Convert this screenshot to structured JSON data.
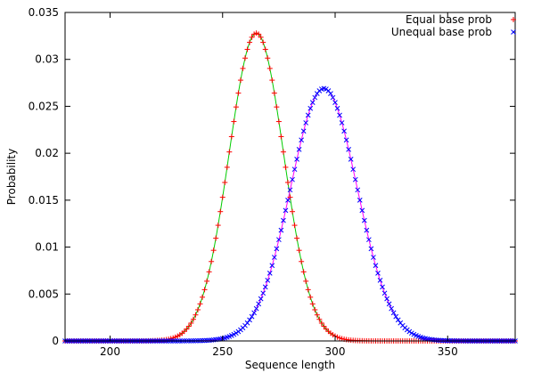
{
  "chart_data": {
    "type": "scatter",
    "title": "",
    "xlabel": "Sequence length",
    "ylabel": "Probability",
    "xlim": [
      180,
      380
    ],
    "ylim": [
      0,
      0.035
    ],
    "xticks": [
      200,
      250,
      300,
      350
    ],
    "yticks": [
      0,
      0.005,
      0.01,
      0.015,
      0.02,
      0.025,
      0.03,
      0.035
    ],
    "ytick_labels": [
      "0",
      "0.005",
      "0.01",
      "0.015",
      "0.02",
      "0.025",
      "0.03",
      "0.035"
    ],
    "grid": false,
    "legend_position": "top-right",
    "series": [
      {
        "name": "Equal base prob",
        "marker": "plus",
        "point_color": "#ff0000",
        "fit_color": "#00cc00",
        "distribution": "normal",
        "mean": 265,
        "std_dev": 12.15,
        "peak": 0.0328,
        "x_range": [
          180,
          380
        ]
      },
      {
        "name": "Unequal base prob",
        "marker": "cross",
        "point_color": "#0000ff",
        "fit_color": "#ff00ff",
        "distribution": "normal",
        "mean": 295,
        "std_dev": 14.8,
        "peak": 0.0269,
        "x_range": [
          180,
          380
        ]
      }
    ]
  }
}
